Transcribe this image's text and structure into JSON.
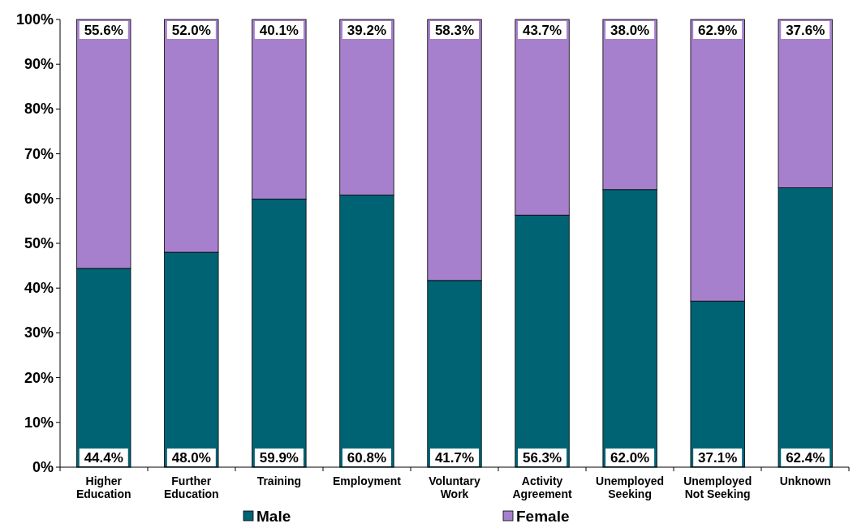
{
  "chart_data": {
    "type": "bar",
    "stacked": true,
    "categories": [
      "Higher Education",
      "Further Education",
      "Training",
      "Employment",
      "Voluntary Work",
      "Activity Agreement",
      "Unemployed Seeking",
      "Unemployed Not Seeking",
      "Unknown"
    ],
    "series": [
      {
        "name": "Male",
        "color": "#006374",
        "values": [
          44.4,
          48.0,
          59.9,
          60.8,
          41.7,
          56.3,
          62.0,
          37.1,
          62.4
        ],
        "value_labels": [
          "44.4%",
          "48.0%",
          "59.9%",
          "60.8%",
          "41.7%",
          "56.3%",
          "62.0%",
          "37.1%",
          "62.4%"
        ]
      },
      {
        "name": "Female",
        "color": "#a680cc",
        "values": [
          55.6,
          52.0,
          40.1,
          39.2,
          58.3,
          43.7,
          38.0,
          62.9,
          37.6
        ],
        "value_labels": [
          "55.6%",
          "52.0%",
          "40.1%",
          "39.2%",
          "58.3%",
          "43.7%",
          "38.0%",
          "62.9%",
          "37.6%"
        ]
      }
    ],
    "ylim": [
      0,
      100
    ],
    "yticks": [
      {
        "value": 0,
        "label": "0%"
      },
      {
        "value": 10,
        "label": "10%"
      },
      {
        "value": 20,
        "label": "20%"
      },
      {
        "value": 30,
        "label": "30%"
      },
      {
        "value": 40,
        "label": "40%"
      },
      {
        "value": 50,
        "label": "50%"
      },
      {
        "value": 60,
        "label": "60%"
      },
      {
        "value": 70,
        "label": "70%"
      },
      {
        "value": 80,
        "label": "80%"
      },
      {
        "value": 90,
        "label": "90%"
      },
      {
        "value": 100,
        "label": "100%"
      }
    ],
    "grid": false,
    "legend": "bottom"
  }
}
